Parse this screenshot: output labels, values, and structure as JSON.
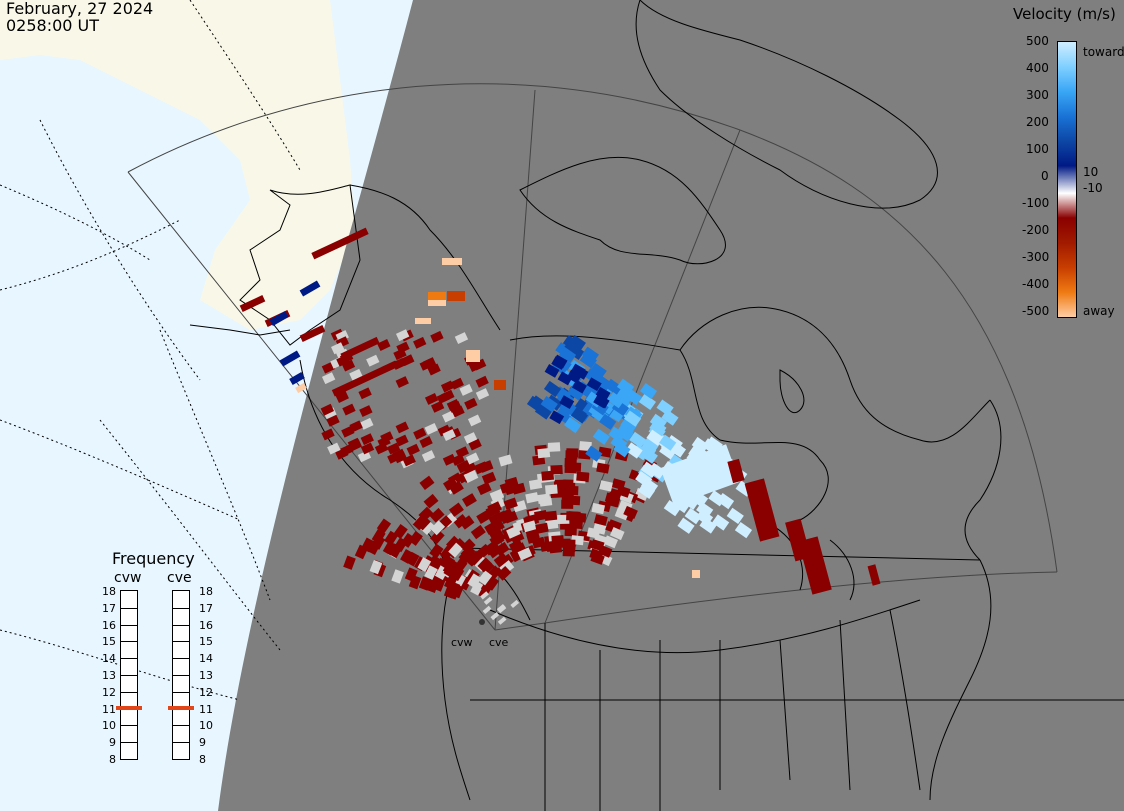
{
  "header": {
    "date": "February, 27 2024",
    "time": "0258:00 UT"
  },
  "legend": {
    "title": "Velocity (m/s)",
    "ticks": [
      "500",
      "400",
      "300",
      "200",
      "100",
      "0",
      "-100",
      "-200",
      "-300",
      "-400",
      "-500"
    ],
    "threshold_pos": "10",
    "threshold_neg": "-10",
    "top_label": "toward",
    "bottom_label": "away",
    "colors": [
      "#cfeeff",
      "#7fd0ff",
      "#3aa6f5",
      "#1a73d6",
      "#0d47a6",
      "#001a85",
      "#ffffff",
      "#8a0000",
      "#a11a00",
      "#c83e00",
      "#ef7a12",
      "#ffcda5"
    ]
  },
  "frequency": {
    "title": "Frequency",
    "radars": [
      {
        "name": "cvw",
        "value": 11
      },
      {
        "name": "cve",
        "value": 11
      }
    ],
    "scale": [
      "18",
      "17",
      "16",
      "15",
      "14",
      "13",
      "12",
      "11",
      "10",
      "9",
      "8"
    ]
  },
  "map_labels": {
    "radar_west": "cvw",
    "radar_east": "cve"
  },
  "colors": {
    "night": "#7f7f7f",
    "day_ocean": "#e8f6ff",
    "day_land": "#f9f8e8",
    "toward_dark": "#001a85",
    "away_dark": "#8a0000",
    "ground_scatter": "#d4d4d4"
  }
}
